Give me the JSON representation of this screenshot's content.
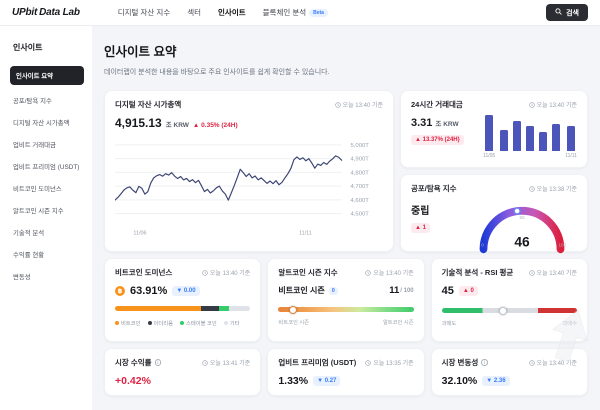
{
  "navbar": {
    "logo": {
      "upbit": "UPbit",
      "datalab": "Data Lab"
    },
    "menu": [
      "디지털 자산 지수",
      "섹터",
      "인사이트",
      "블록체인 분석"
    ],
    "beta_badge": "Beta",
    "search_label": "검색"
  },
  "sidebar": {
    "header": "인사이트",
    "items": [
      "인사이트 요약",
      "공포/탐욕 지수",
      "디지털 자산 시가총액",
      "업비트 거래대금",
      "업비트 프리미엄 (USDT)",
      "비트코인 도미넌스",
      "알트코인 시즌 지수",
      "기술적 분석",
      "수익률 현황",
      "변동성"
    ]
  },
  "page": {
    "title": "인사이트 요약",
    "subtitle": "데이터랩이 분석한 내용을 바탕으로 주요 인사이트를 쉽게 확인할 수 있습니다."
  },
  "cards": {
    "market_cap": {
      "title": "디지털 자산 시가총액",
      "timestamp": "오늘 13:40 기준",
      "value": "4,915.13",
      "unit": "조 KRW",
      "change": "▲ 0.35% (24H)"
    },
    "volume": {
      "title": "24시간 거래대금",
      "timestamp": "오늘 13:40 기준",
      "value": "3.31",
      "unit": "조 KRW",
      "change": "▲ 13.37% (24H)"
    },
    "fear_greed": {
      "title": "공포/탐욕 지수",
      "timestamp": "오늘 13:38 기준",
      "label": "중립",
      "change": "▲ 1",
      "value": "46"
    },
    "dominance": {
      "title": "비트코인 도미넌스",
      "timestamp": "오늘 13:40 기준",
      "coin_symbol": "฿",
      "value": "63.91%",
      "change": "▼ 0.00"
    },
    "altseason": {
      "title": "알트코인 시즌 지수",
      "timestamp": "오늘 13:40 기준",
      "label": "비트코인 시즌",
      "label_badge": "0",
      "value": "11",
      "max": "/ 100",
      "left_label": "비트코인 시즌",
      "right_label": "알트코인 시즌"
    },
    "rsi": {
      "title": "기술적 분석 - RSI 평균",
      "timestamp": "오늘 13:40 기준",
      "value": "45",
      "change": "▲ 0",
      "left_label": "과매도",
      "right_label": "과매수"
    },
    "market_return": {
      "title": "시장 수익률",
      "timestamp": "오늘 13:41 기준",
      "value": "+0.42%"
    },
    "premium": {
      "title": "업비트 프리미엄 (USDT)",
      "timestamp": "오늘 13:35 기준",
      "value": "1.33%",
      "change": "▼ 0.27"
    },
    "volatility": {
      "title": "시장 변동성",
      "timestamp": "오늘 13:40 기준",
      "value": "32.10%",
      "change": "▼ 2.36"
    }
  },
  "colors": {
    "up_red": "#e02343",
    "down_blue": "#377bfb",
    "line": "#3d4573",
    "bar": "#4b55ba",
    "btc_orange": "#f7931a"
  },
  "chart_data": [
    {
      "id": "market_cap_trend",
      "type": "line",
      "title": "디지털 자산 시가총액",
      "ylabel": "조 KRW (T)",
      "ylim": [
        4450,
        5030
      ],
      "y_ticks": [
        {
          "v": 5000,
          "label": "5,000T"
        },
        {
          "v": 4900,
          "label": "4,900T"
        },
        {
          "v": 4800,
          "label": "4,800T"
        },
        {
          "v": 4700,
          "label": "4,700T"
        },
        {
          "v": 4600,
          "label": "4,600T"
        },
        {
          "v": 4500,
          "label": "4,500T"
        }
      ],
      "x_ticks": [
        {
          "pos": 0.11,
          "label": "11/06"
        },
        {
          "pos": 0.84,
          "label": "11/11"
        }
      ],
      "values": [
        4598,
        4618,
        4645,
        4672,
        4688,
        4694,
        4670,
        4652,
        4698,
        4685,
        4642,
        4660,
        4722,
        4760,
        4776,
        4784,
        4772,
        4790,
        4780,
        4798,
        4772,
        4755,
        4770,
        4745,
        4756,
        4733,
        4747,
        4725,
        4742,
        4702,
        4660,
        4676,
        4650,
        4666,
        4688,
        4700,
        4665,
        4642,
        4598,
        4650,
        4705,
        4762,
        4822,
        4798,
        4770,
        4790,
        4760,
        4774,
        4746,
        4760,
        4740,
        4720,
        4737,
        4718,
        4740,
        4710,
        4728,
        4760,
        4790,
        4830,
        4892,
        4912,
        4894,
        4906,
        4884,
        4900,
        4868,
        4830,
        4860,
        4850,
        4872,
        4858,
        4882,
        4898,
        4920,
        4910,
        4888
      ]
    },
    {
      "id": "volume_daily",
      "type": "bar",
      "title": "24시간 거래대금 (조 KRW)",
      "ylim": [
        0,
        6.6
      ],
      "values": [
        6.2,
        3.4,
        4.9,
        4.1,
        3.2,
        4.4,
        4.1
      ],
      "x_tick_first": "11/05",
      "x_tick_last": "11/11"
    },
    {
      "id": "fear_greed",
      "type": "gauge",
      "title": "공포/탐욕 지수",
      "value": 46,
      "min": 0,
      "max": 100,
      "tick_labels": [
        "0",
        "50",
        "100"
      ],
      "gradient": [
        "#1e3ad6",
        "#8a5ce0",
        "#c857b4",
        "#dd1f3e"
      ]
    },
    {
      "id": "btc_dominance",
      "type": "stacked-bar",
      "title": "비트코인 도미넌스",
      "segments": [
        {
          "name": "비트코인",
          "value": 63.91,
          "color": "#f7931a"
        },
        {
          "name": "이더리움",
          "value": 13.0,
          "color": "#363a45"
        },
        {
          "name": "스테이블 코인",
          "value": 7.0,
          "color": "#35cd6b"
        },
        {
          "name": "기타",
          "value": 16.09,
          "color": "#dfe2e8"
        }
      ]
    },
    {
      "id": "altcoin_season",
      "type": "slider",
      "title": "알트코인 시즌 지수",
      "value": 11,
      "min": 0,
      "max": 100,
      "gradient": [
        "#e8833a",
        "#f0a050",
        "#f6c37e",
        "#cdea9f",
        "#7edc86",
        "#3ecb6a"
      ],
      "marker_border": "#e8833a"
    },
    {
      "id": "rsi_avg",
      "type": "slider",
      "title": "기술적 분석 - RSI 평균",
      "value": 45,
      "min": 0,
      "max": 100,
      "zones": [
        {
          "to": 30,
          "color": "#2fbf6b"
        },
        {
          "to": 71,
          "color": "#d9dce1"
        },
        {
          "to": 100,
          "color": "#cf3333"
        }
      ],
      "marker_border": "#c3c8d0"
    }
  ]
}
